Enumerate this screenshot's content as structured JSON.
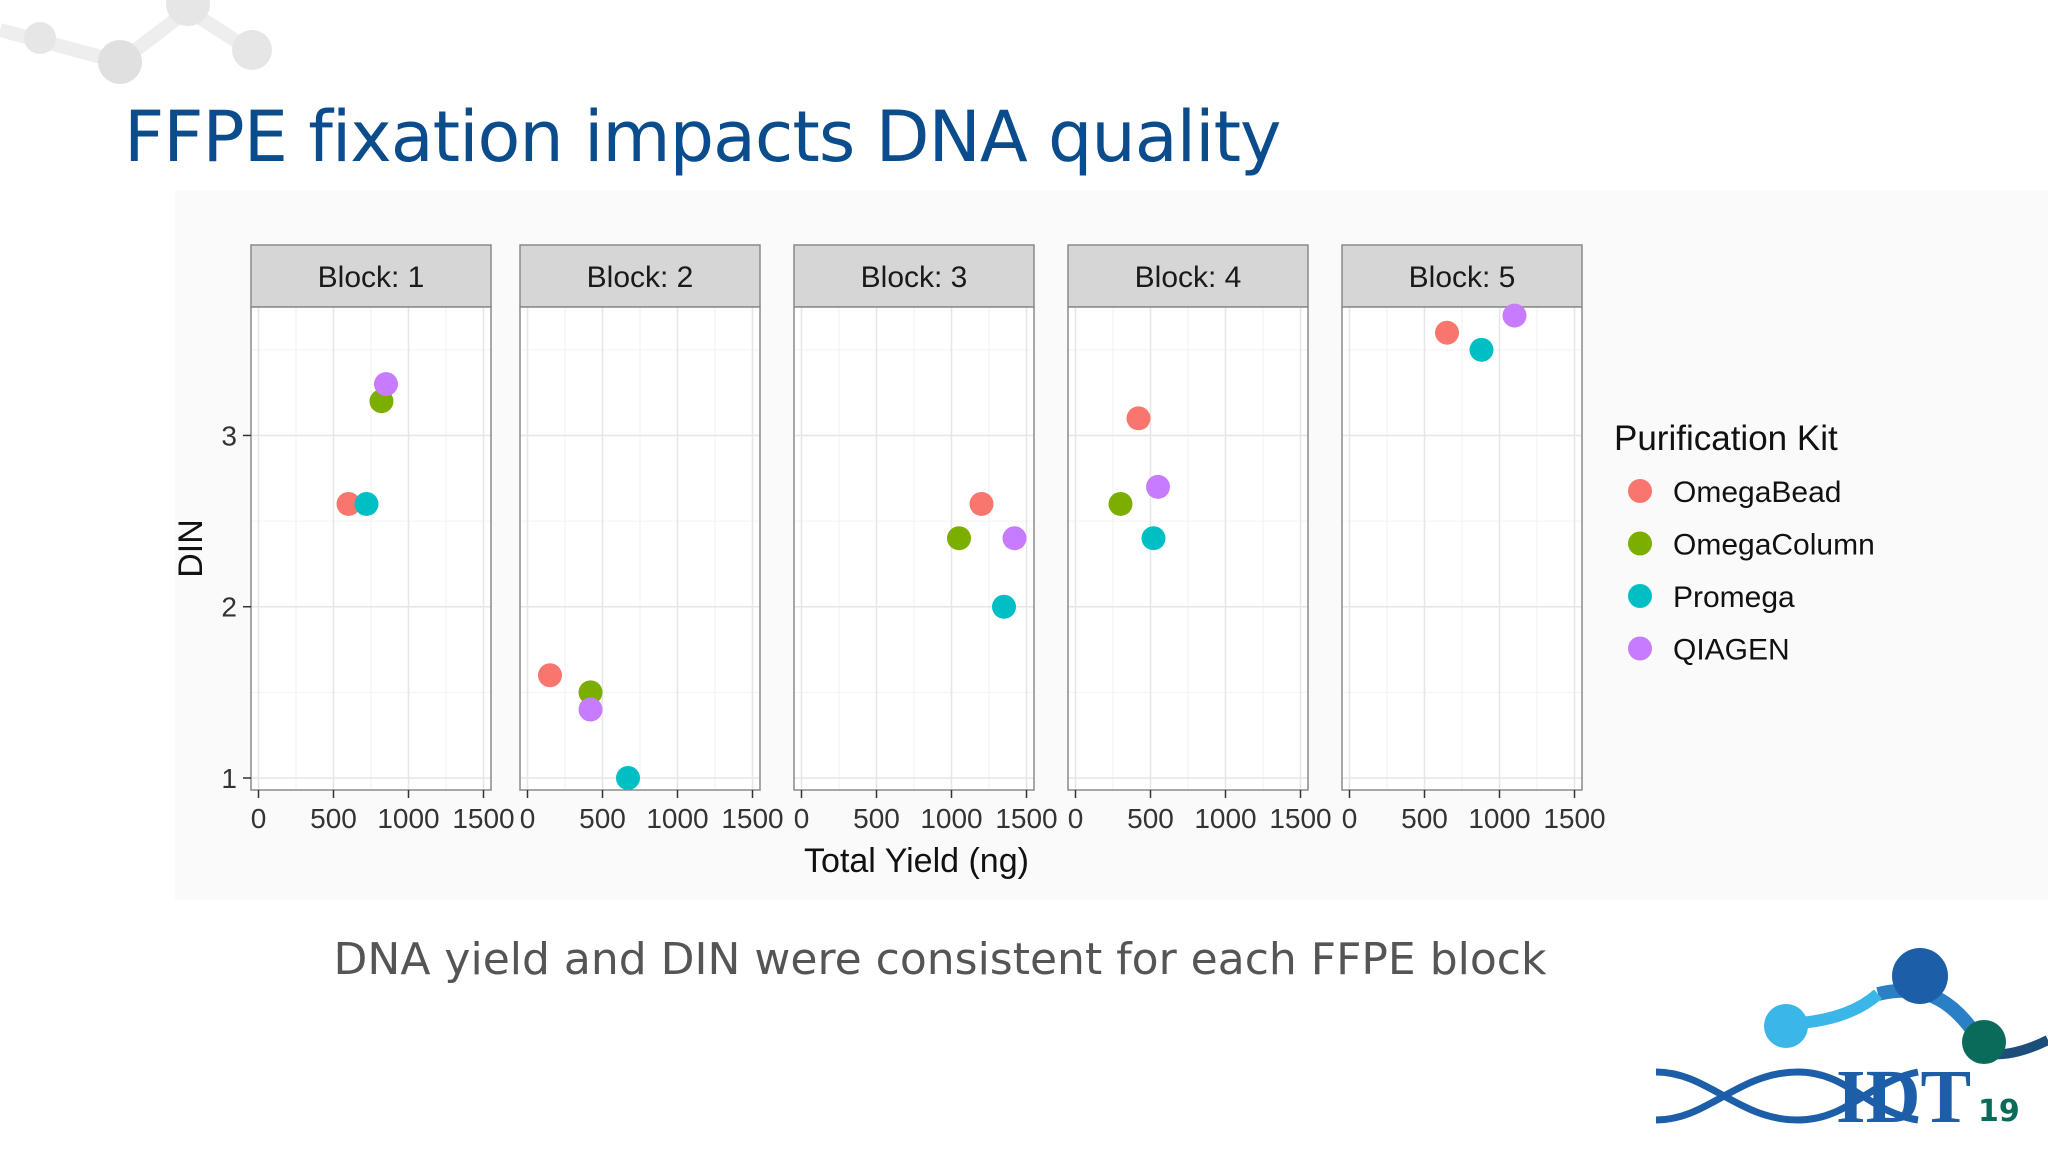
{
  "slide": {
    "title": "FFPE fixation impacts DNA quality",
    "caption": "DNA yield and DIN were consistent for each FFPE block",
    "slide_number": "19",
    "logo_text": "IDT",
    "colors": {
      "title": "#0b4c8c",
      "logo_blue": "#1d5ea8",
      "logo_light": "#3bb6e8",
      "logo_green": "#0a6b5a"
    }
  },
  "chart_data": {
    "type": "scatter",
    "facets": [
      "Block: 1",
      "Block: 2",
      "Block: 3",
      "Block: 4",
      "Block: 5"
    ],
    "xlabel": "Total Yield (ng)",
    "ylabel": "DIN",
    "xlim": [
      -50,
      1550
    ],
    "ylim": [
      0.93,
      3.75
    ],
    "xticks": [
      0,
      500,
      1000,
      1500
    ],
    "yticks": [
      1,
      2,
      3
    ],
    "grid": true,
    "legend": {
      "title": "Purification Kit",
      "placement": "right"
    },
    "series": [
      {
        "name": "OmegaBead",
        "color": "#f8766d",
        "points": [
          {
            "block": 1,
            "x": 600,
            "y": 2.6
          },
          {
            "block": 2,
            "x": 150,
            "y": 1.6
          },
          {
            "block": 3,
            "x": 1200,
            "y": 2.6
          },
          {
            "block": 4,
            "x": 420,
            "y": 3.1
          },
          {
            "block": 5,
            "x": 650,
            "y": 3.6
          }
        ]
      },
      {
        "name": "OmegaColumn",
        "color": "#7cae00",
        "points": [
          {
            "block": 1,
            "x": 820,
            "y": 3.2
          },
          {
            "block": 2,
            "x": 420,
            "y": 1.5
          },
          {
            "block": 3,
            "x": 1050,
            "y": 2.4
          },
          {
            "block": 4,
            "x": 300,
            "y": 2.6
          },
          {
            "block": 5,
            "x": null,
            "y": null
          }
        ]
      },
      {
        "name": "Promega",
        "color": "#00bfc4",
        "points": [
          {
            "block": 1,
            "x": 720,
            "y": 2.6
          },
          {
            "block": 2,
            "x": 670,
            "y": 1.0
          },
          {
            "block": 3,
            "x": 1350,
            "y": 2.0
          },
          {
            "block": 4,
            "x": 520,
            "y": 2.4
          },
          {
            "block": 5,
            "x": 880,
            "y": 3.5
          }
        ]
      },
      {
        "name": "QIAGEN",
        "color": "#c77cff",
        "points": [
          {
            "block": 1,
            "x": 850,
            "y": 3.3
          },
          {
            "block": 2,
            "x": 420,
            "y": 1.4
          },
          {
            "block": 3,
            "x": 1420,
            "y": 2.4
          },
          {
            "block": 4,
            "x": 550,
            "y": 2.7
          },
          {
            "block": 5,
            "x": 1100,
            "y": 3.7
          }
        ]
      }
    ]
  }
}
